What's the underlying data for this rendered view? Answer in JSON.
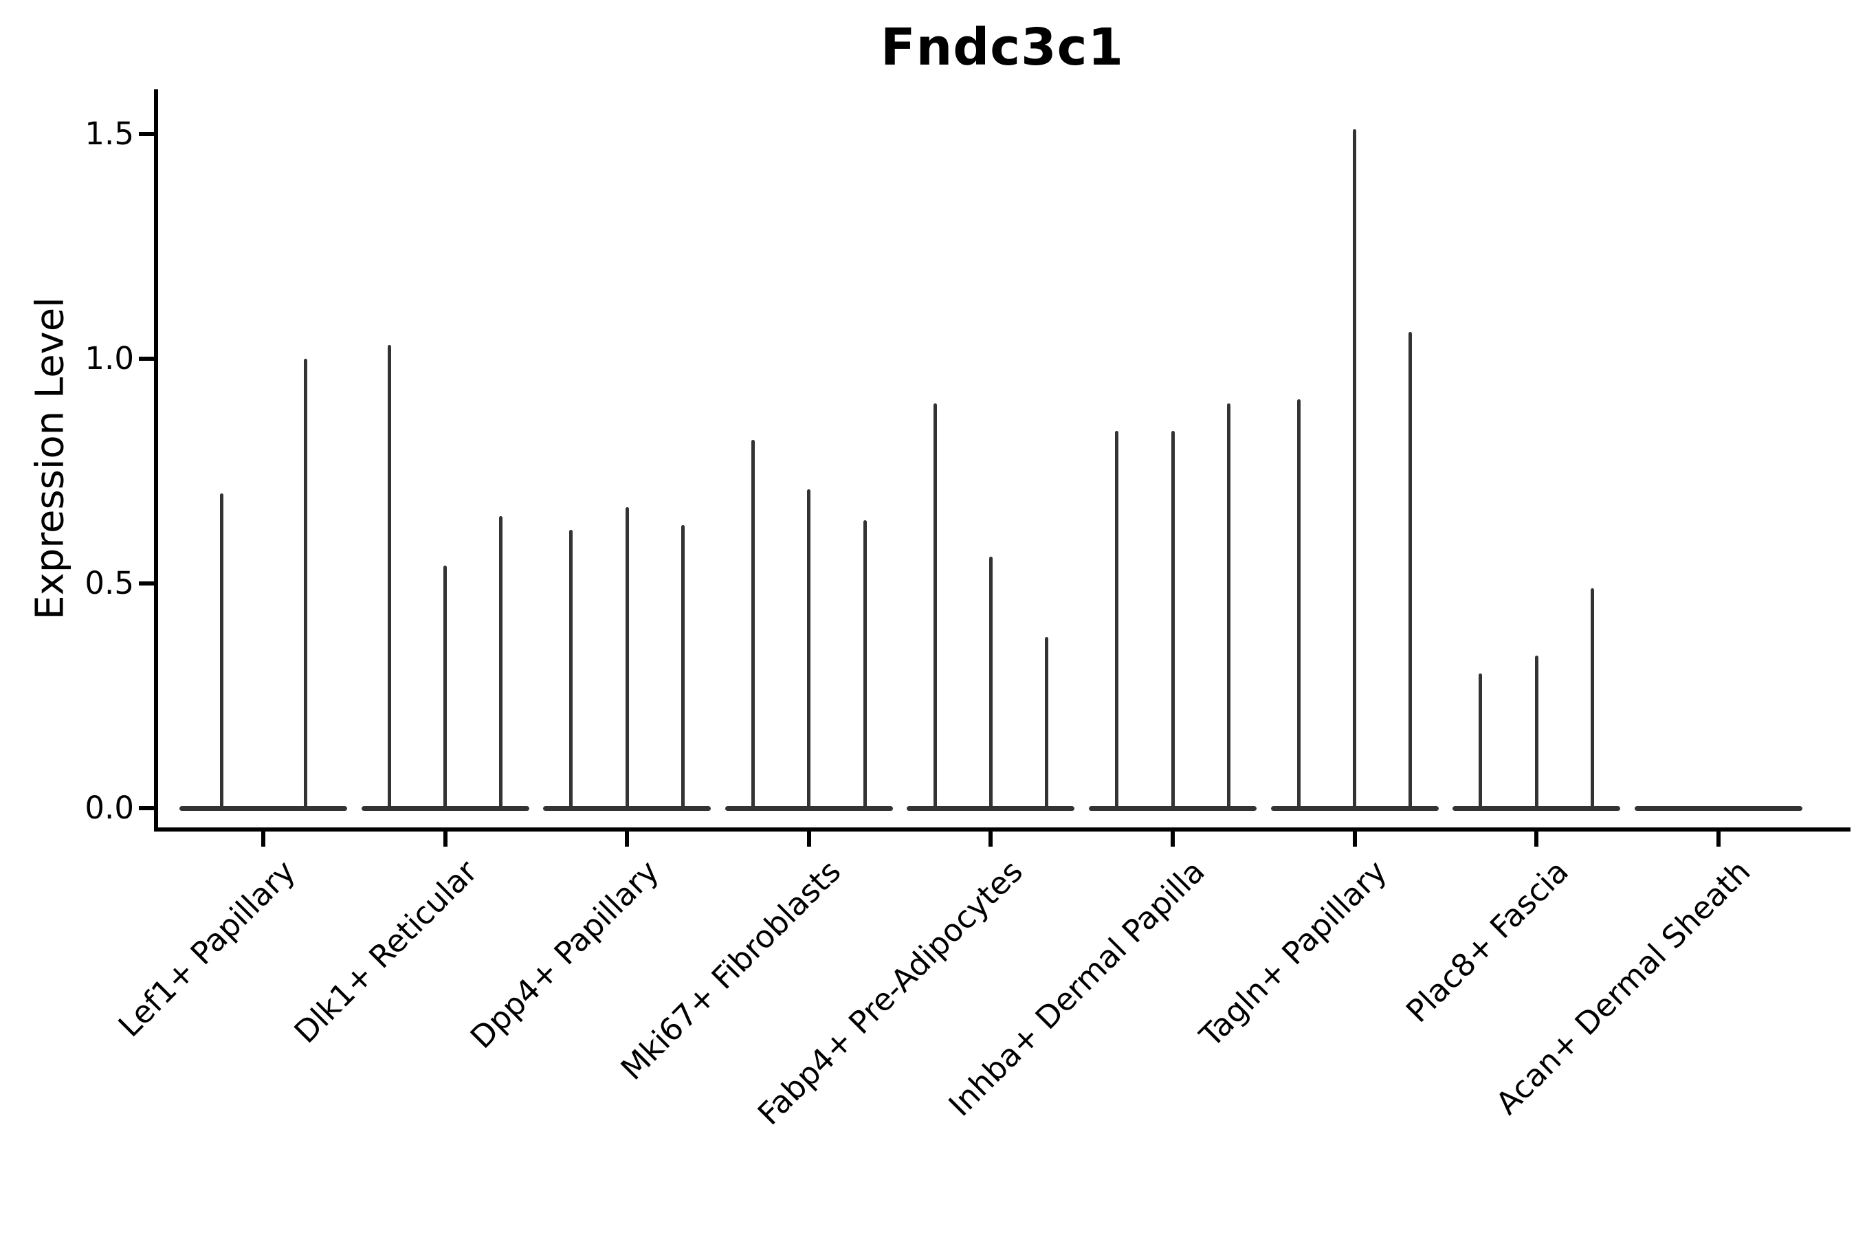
{
  "title": "Fndc3c1",
  "chart_data": {
    "type": "violin",
    "title": "Fndc3c1",
    "xlabel": "",
    "ylabel": "Expression Level",
    "yticks": [
      "0.0",
      "0.5",
      "1.0",
      "1.5"
    ],
    "ytick_values": [
      0.0,
      0.5,
      1.0,
      1.5
    ],
    "ylim": [
      -0.05,
      1.6
    ],
    "grid": false,
    "legend": "none",
    "x_tick_rotation_deg": 45,
    "note": "single-cell expression violins: wide flat base at 0 with thin spike up to the max expression value",
    "categories": [
      "Lef1+ Papillary",
      "Dlk1+ Reticular",
      "Dpp4+ Papillary",
      "Mki67+ Fibroblasts",
      "Fabp4+ Pre-Adipocytes",
      "Inhba+ Dermal Papilla",
      "Tagln+ Papillary",
      "Plac8+ Fascia",
      "Acan+ Dermal Sheath"
    ],
    "groups": [
      {
        "category": "Lef1+ Papillary",
        "violin_max_values": [
          0.7,
          1.0
        ]
      },
      {
        "category": "Dlk1+ Reticular",
        "violin_max_values": [
          1.03,
          0.54,
          0.65
        ]
      },
      {
        "category": "Dpp4+ Papillary",
        "violin_max_values": [
          0.62,
          0.67,
          0.63
        ]
      },
      {
        "category": "Mki67+ Fibroblasts",
        "violin_max_values": [
          0.82,
          0.71,
          0.64
        ]
      },
      {
        "category": "Fabp4+ Pre-Adipocytes",
        "violin_max_values": [
          0.9,
          0.56,
          0.38
        ]
      },
      {
        "category": "Inhba+ Dermal Papilla",
        "violin_max_values": [
          0.84,
          0.84,
          0.9
        ]
      },
      {
        "category": "Tagln+ Papillary",
        "violin_max_values": [
          0.91,
          1.51,
          1.06
        ]
      },
      {
        "category": "Plac8+ Fascia",
        "violin_max_values": [
          0.3,
          0.34,
          0.49
        ]
      },
      {
        "category": "Acan+ Dermal Sheath",
        "violin_max_values": [
          0.0,
          0.0,
          0.0
        ]
      }
    ],
    "colors": {
      "violin": "#333333",
      "axis": "#000000",
      "text": "#000000",
      "background": "#ffffff"
    }
  }
}
